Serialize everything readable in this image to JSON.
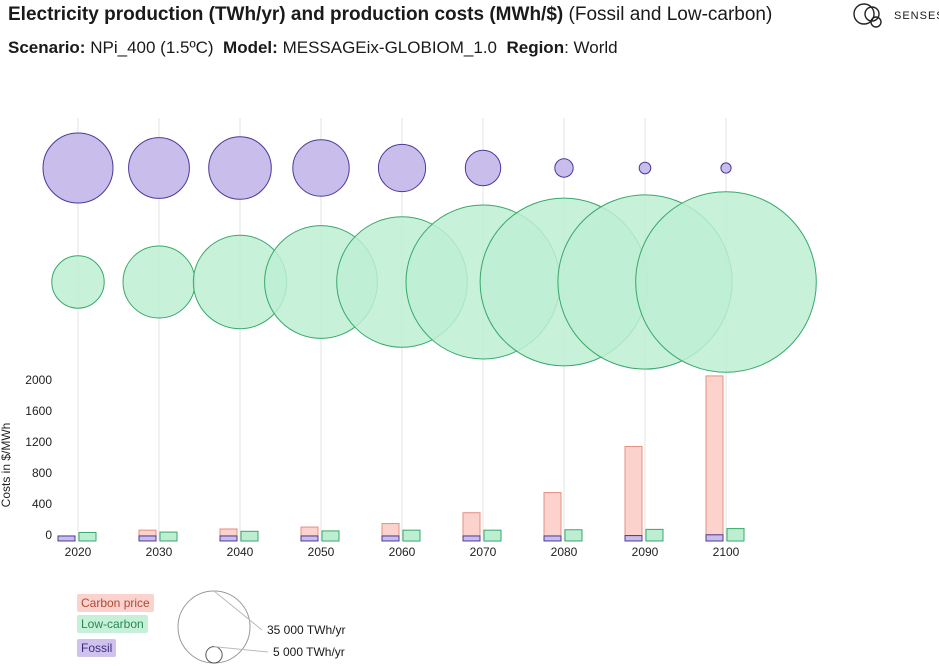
{
  "header": {
    "title_bold": "Electricity production (TWh/yr) and production costs (MWh/$)",
    "title_rest": "(Fossil and Low-carbon)",
    "scenario_label": "Scenario:",
    "scenario_value": "NPi_400 (1.5ºC)",
    "model_label": "Model:",
    "model_value": "MESSAGEix-GLOBIOM_1.0",
    "region_label": "Region",
    "region_value": ": World"
  },
  "logo": {
    "text": "SENSES",
    "icon": "senses-logo-icon"
  },
  "colors": {
    "fossil_fill": "#c9bdeb",
    "fossil_stroke": "#4b3a99",
    "lowcarbon_fill": "#bdeed2",
    "lowcarbon_stroke": "#37a86a",
    "carbon_fill": "#fbd3cc",
    "carbon_stroke": "#e48f80",
    "grid": "#e3e3e3"
  },
  "chart_data": [
    {
      "type": "bubble",
      "title": "Electricity production (TWh/yr)",
      "years": [
        "2020",
        "2030",
        "2040",
        "2050",
        "2060",
        "2070",
        "2080",
        "2090",
        "2100"
      ],
      "series": [
        {
          "name": "Fossil",
          "values": [
            33000,
            25000,
            26500,
            21500,
            15000,
            8500,
            2300,
            900,
            700
          ]
        },
        {
          "name": "Low-carbon",
          "values": [
            18500,
            35000,
            59000,
            86000,
            115000,
            160000,
            190000,
            205000,
            220000
          ]
        }
      ],
      "size_reference": [
        {
          "value": 35000,
          "label": "35 000 TWh/yr"
        },
        {
          "value": 5000,
          "label": "5 000 TWh/yr"
        }
      ]
    },
    {
      "type": "bar",
      "ylabel": "Costs in $/MWh",
      "categories": [
        "2020",
        "2030",
        "2040",
        "2050",
        "2060",
        "2070",
        "2080",
        "2090",
        "2100"
      ],
      "yticks": [
        "0",
        "400",
        "800",
        "1200",
        "1600",
        "2000"
      ],
      "ylim": [
        0,
        2000
      ],
      "series": [
        {
          "name": "Fossil",
          "values": [
            65,
            65,
            65,
            65,
            65,
            65,
            65,
            70,
            80
          ]
        },
        {
          "name": "Carbon price",
          "values": [
            0,
            75,
            90,
            115,
            160,
            300,
            560,
            1150,
            2050
          ]
        },
        {
          "name": "Low-carbon",
          "values": [
            110,
            115,
            125,
            130,
            140,
            140,
            145,
            150,
            160
          ]
        }
      ]
    }
  ],
  "legend": {
    "carbon_price": "Carbon price",
    "low_carbon": "Low-carbon",
    "fossil": "Fossil"
  }
}
